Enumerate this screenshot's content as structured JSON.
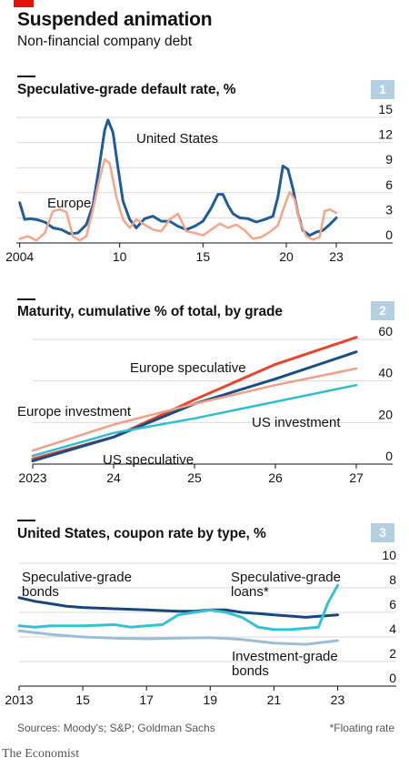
{
  "header": {
    "title": "Suspended animation",
    "subtitle": "Non-financial company debt"
  },
  "colors": {
    "us": "#1f5c99",
    "europe": "#f4a58a",
    "europe_spec": "#e8452c",
    "us_spec": "#1a4c85",
    "europe_inv": "#f0a084",
    "us_inv": "#2ebed0",
    "spec_bonds": "#17467a",
    "spec_loans": "#33c2d3",
    "inv_bonds": "#9bbdd6",
    "panel_tag": "#b3cfe0",
    "brand_red": "#e3120b"
  },
  "panels": [
    {
      "number": "1",
      "title": "Speculative-grade default rate, %"
    },
    {
      "number": "2",
      "title": "Maturity, cumulative % of total, by grade"
    },
    {
      "number": "3",
      "title": "United States, coupon rate by type, %"
    }
  ],
  "footer": {
    "sources": "Sources: Moody's; S&P; Goldman Sachs",
    "note": "*Floating rate"
  },
  "brand": "The Economist",
  "chart_data": [
    {
      "type": "line",
      "title": "Speculative-grade default rate, %",
      "x_ticks": [
        "2004",
        "10",
        "15",
        "20",
        "23"
      ],
      "x_tick_values": [
        2004,
        2010,
        2015,
        2020,
        2023
      ],
      "y_ticks": [
        "0",
        "3",
        "6",
        "9",
        "12",
        "15"
      ],
      "ylim": [
        0,
        15
      ],
      "xlim": [
        2003.8,
        2024.2
      ],
      "grid": true,
      "series": [
        {
          "name": "United States",
          "x": [
            2004,
            2004.3,
            2004.6,
            2005,
            2005.5,
            2006,
            2006.5,
            2007,
            2007.5,
            2008,
            2008.4,
            2008.8,
            2009.1,
            2009.3,
            2009.6,
            2009.9,
            2010.2,
            2010.6,
            2011,
            2011.5,
            2012,
            2012.5,
            2013,
            2013.5,
            2014,
            2014.5,
            2015,
            2015.5,
            2015.9,
            2016.2,
            2016.5,
            2016.8,
            2017.2,
            2017.7,
            2018.2,
            2018.7,
            2019.2,
            2019.5,
            2019.8,
            2020.1,
            2020.4,
            2020.7,
            2021,
            2021.4,
            2021.8,
            2022.2,
            2022.6,
            2023
          ],
          "y": [
            4.8,
            2.8,
            2.9,
            2.8,
            2.5,
            1.8,
            1.6,
            1.1,
            1.2,
            2.2,
            4.5,
            9.5,
            13.5,
            14.7,
            13.2,
            9,
            5,
            2.8,
            1.8,
            2.9,
            3.2,
            2.6,
            2.6,
            2,
            1.6,
            2,
            2.6,
            4.2,
            5.8,
            5.8,
            4.5,
            3.5,
            3,
            2.9,
            2.5,
            2.8,
            3.2,
            5.5,
            9.2,
            8.8,
            6.5,
            3.5,
            1.5,
            0.9,
            1.3,
            1.5,
            2.2,
            3
          ]
        },
        {
          "name": "Europe",
          "x": [
            2004,
            2004.5,
            2005,
            2005.5,
            2006,
            2006.4,
            2006.8,
            2007.2,
            2007.6,
            2008,
            2008.4,
            2008.8,
            2009.1,
            2009.4,
            2009.8,
            2010.2,
            2010.6,
            2011,
            2011.5,
            2012,
            2012.5,
            2013,
            2013.5,
            2014,
            2014.5,
            2015,
            2015.5,
            2016,
            2016.5,
            2017,
            2017.5,
            2018,
            2018.5,
            2019,
            2019.5,
            2019.9,
            2020.2,
            2020.5,
            2020.8,
            2021.2,
            2021.6,
            2022,
            2022.3,
            2022.6,
            2023
          ],
          "y": [
            0.5,
            0.8,
            0.3,
            1.2,
            3.8,
            4,
            3.7,
            0.8,
            0.3,
            0.8,
            4,
            7.8,
            10,
            9.5,
            5.5,
            2.8,
            1.8,
            2.8,
            2.2,
            1.6,
            1.4,
            2.8,
            3.5,
            1.4,
            1.2,
            0.9,
            1.6,
            2.3,
            1.8,
            2.2,
            1.5,
            0.5,
            0.7,
            1.3,
            2.1,
            4.5,
            6.1,
            5.2,
            2.6,
            0.8,
            0.4,
            0.7,
            3.8,
            4,
            3.6
          ]
        }
      ],
      "annotations": [
        "United States",
        "Europe"
      ]
    },
    {
      "type": "line",
      "title": "Maturity, cumulative % of total, by grade",
      "x_ticks": [
        "2023",
        "24",
        "25",
        "26",
        "27"
      ],
      "x_tick_values": [
        2023,
        2024,
        2025,
        2026,
        2027
      ],
      "y_ticks": [
        "0",
        "20",
        "40",
        "60"
      ],
      "ylim": [
        0,
        60
      ],
      "xlim": [
        2023,
        2027
      ],
      "grid": true,
      "series": [
        {
          "name": "Europe speculative",
          "x": [
            2023,
            2024,
            2025,
            2026,
            2027
          ],
          "y": [
            2.5,
            13,
            31,
            48,
            61
          ]
        },
        {
          "name": "US speculative",
          "x": [
            2023,
            2024,
            2025,
            2026,
            2027
          ],
          "y": [
            1.5,
            13,
            29,
            41,
            54
          ]
        },
        {
          "name": "Europe investment",
          "x": [
            2023,
            2024,
            2025,
            2026,
            2027
          ],
          "y": [
            6.5,
            19,
            29,
            38,
            46
          ]
        },
        {
          "name": "US investment",
          "x": [
            2023,
            2024,
            2025,
            2026,
            2027
          ],
          "y": [
            4,
            15,
            22,
            30,
            38
          ]
        }
      ],
      "annotations": [
        "Europe speculative",
        "Europe investment",
        "US investment",
        "US speculative"
      ]
    },
    {
      "type": "line",
      "title": "United States, coupon rate by type, %",
      "x_ticks": [
        "2013",
        "15",
        "17",
        "19",
        "21",
        "23"
      ],
      "x_tick_values": [
        2013,
        2015,
        2017,
        2019,
        2021,
        2023
      ],
      "y_ticks": [
        "0",
        "2",
        "4",
        "6",
        "8",
        "10"
      ],
      "ylim": [
        0,
        10
      ],
      "xlim": [
        2013,
        2023.7
      ],
      "grid": true,
      "series": [
        {
          "name": "Speculative-grade bonds",
          "x": [
            2013,
            2013.5,
            2014,
            2014.5,
            2015,
            2016,
            2017,
            2018,
            2018.5,
            2019,
            2019.5,
            2020,
            2020.5,
            2021,
            2021.5,
            2022,
            2022.5,
            2023
          ],
          "y": [
            7.2,
            6.9,
            6.7,
            6.5,
            6.4,
            6.3,
            6.2,
            6.1,
            6.1,
            6.2,
            6.2,
            6,
            5.9,
            5.8,
            5.7,
            5.6,
            5.7,
            5.8
          ]
        },
        {
          "name": "Speculative-grade loans*",
          "x": [
            2013,
            2013.5,
            2014,
            2015,
            2016,
            2016.5,
            2017,
            2017.5,
            2018,
            2018.5,
            2019,
            2019.5,
            2020,
            2020.5,
            2021,
            2021.5,
            2022,
            2022.4,
            2022.7,
            2023
          ],
          "y": [
            4.9,
            4.8,
            4.9,
            4.9,
            5,
            4.8,
            4.9,
            5,
            5.8,
            6,
            6.2,
            6.0,
            5.6,
            4.8,
            4.6,
            4.6,
            4.7,
            4.8,
            6.8,
            8.2
          ]
        },
        {
          "name": "Investment-grade bonds",
          "x": [
            2013,
            2014,
            2015,
            2016,
            2017,
            2018,
            2019,
            2020,
            2021,
            2022,
            2023
          ],
          "y": [
            4.5,
            4.2,
            4,
            3.9,
            3.85,
            3.9,
            3.95,
            3.8,
            3.5,
            3.4,
            3.7
          ]
        }
      ],
      "annotations": [
        "Speculative-grade bonds",
        "Speculative-grade loans*",
        "Investment-grade bonds"
      ]
    }
  ]
}
